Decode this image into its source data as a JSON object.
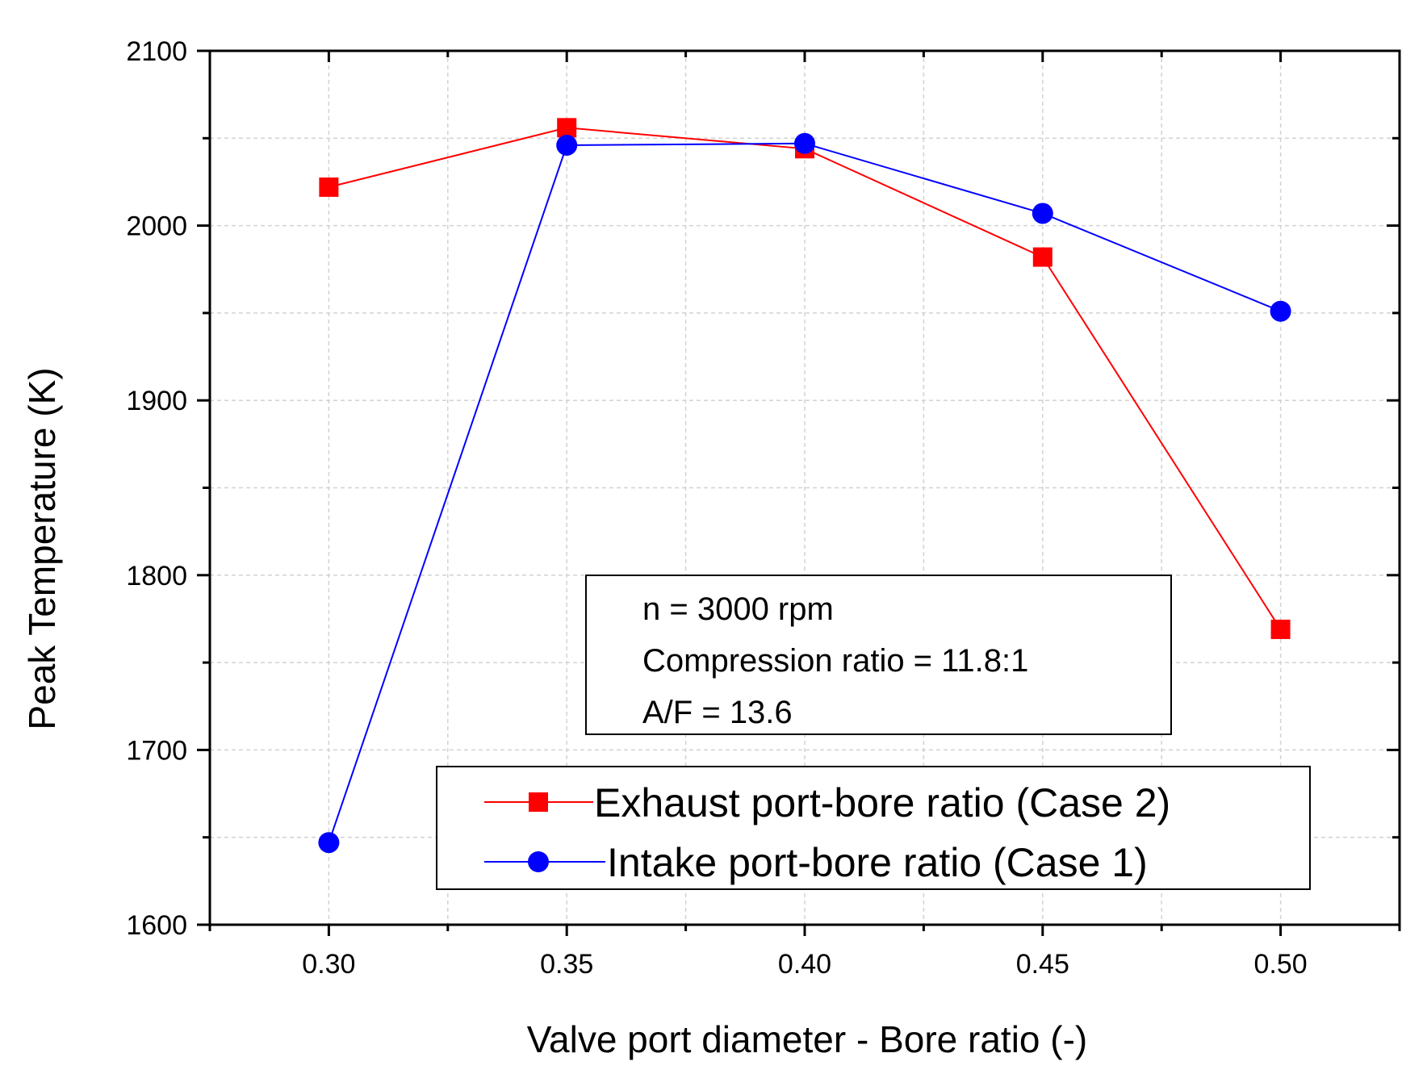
{
  "chart_data": {
    "type": "line",
    "title": "",
    "xlabel": "Valve port diameter - Bore ratio (-)",
    "ylabel": "Peak Temperature (K)",
    "xlim": [
      0.275,
      0.525
    ],
    "ylim": [
      1600,
      2100
    ],
    "x_ticks": [
      0.3,
      0.35,
      0.4,
      0.45,
      0.5
    ],
    "x_tick_labels": [
      "0.30",
      "0.35",
      "0.40",
      "0.45",
      "0.50"
    ],
    "x_minor_ticks": [
      0.275,
      0.325,
      0.375,
      0.425,
      0.475,
      0.525
    ],
    "y_ticks": [
      1600,
      1700,
      1800,
      1900,
      2000,
      2100
    ],
    "y_tick_labels": [
      "1600",
      "1700",
      "1800",
      "1900",
      "2000",
      "2100"
    ],
    "y_minor_ticks": [
      1650,
      1750,
      1850,
      1950,
      2050
    ],
    "grid": true,
    "legend_position": "bottom-right",
    "series": [
      {
        "name": "Exhaust port-bore ratio (Case 2)",
        "color": "#ff0000",
        "marker": "square",
        "x": [
          0.3,
          0.35,
          0.4,
          0.45,
          0.5
        ],
        "y": [
          2022,
          2056,
          2044,
          1982,
          1769
        ]
      },
      {
        "name": "Intake port-bore ratio (Case 1)",
        "color": "#0000ff",
        "marker": "circle",
        "x": [
          0.3,
          0.35,
          0.4,
          0.45,
          0.5
        ],
        "y": [
          1647,
          2046,
          2047,
          2007,
          1951
        ]
      }
    ],
    "annotation": {
      "lines": [
        "n = 3000 rpm",
        "Compression ratio = 11.8:1",
        "A/F = 13.6"
      ]
    }
  }
}
